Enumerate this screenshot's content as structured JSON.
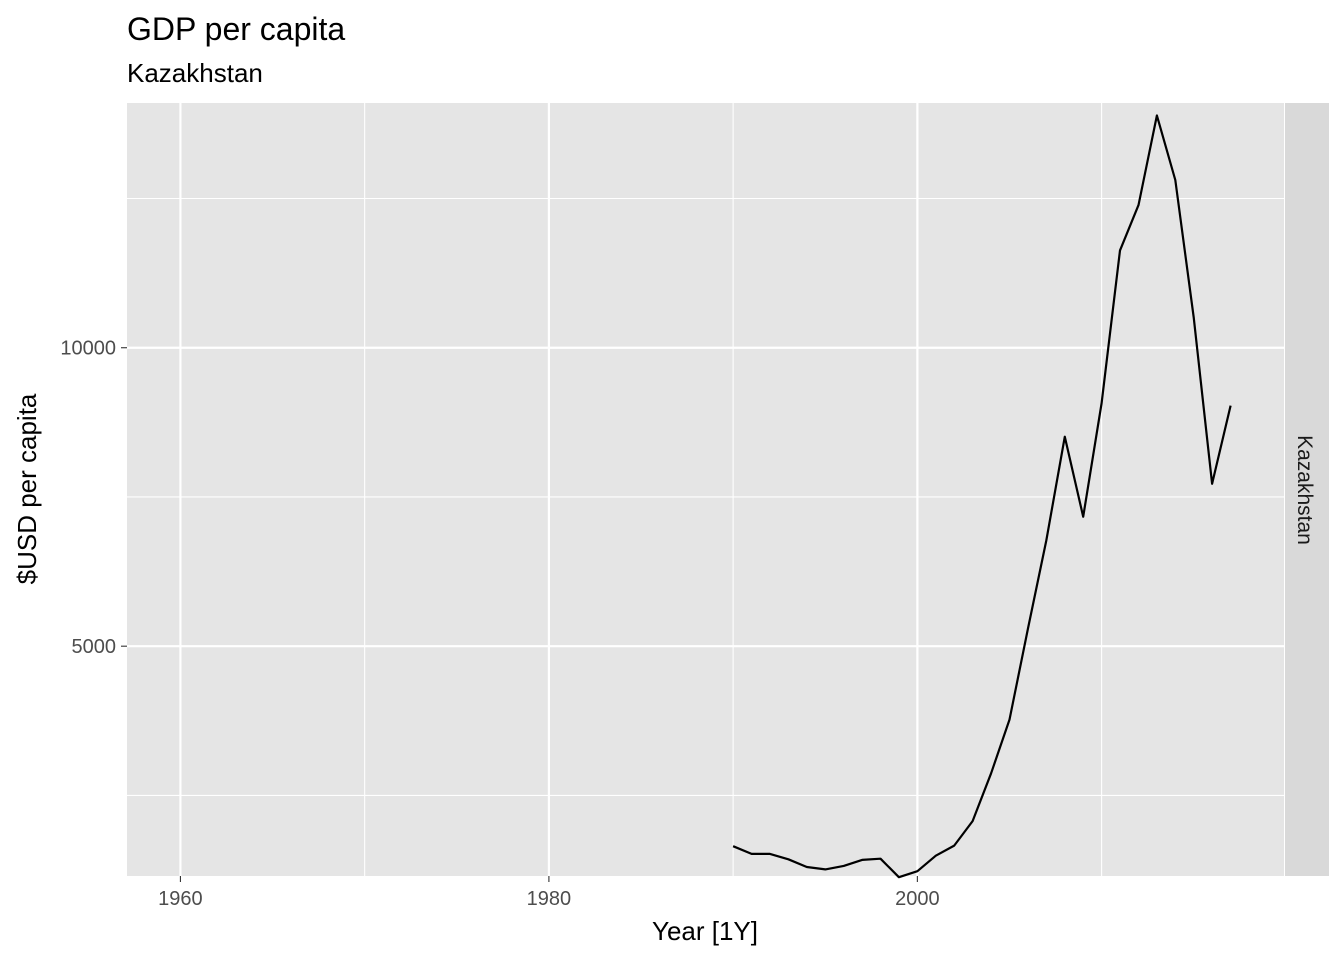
{
  "chart_data": {
    "type": "line",
    "title": "GDP per capita",
    "subtitle": "Kazakhstan",
    "xlabel": "Year [1Y]",
    "ylabel": "$USD per capita",
    "facet_label": "Kazakhstan",
    "xlim": [
      1957.1,
      2019.9
    ],
    "ylim": [
      1150,
      14100
    ],
    "x_ticks": [
      1960,
      1980,
      2000
    ],
    "x_minor_ticks": [
      1970,
      1990,
      2010
    ],
    "y_ticks": [
      5000,
      10000
    ],
    "y_minor_ticks": [
      2500,
      7500,
      12500
    ],
    "grid": true,
    "legend": "none",
    "colors": {
      "panel": "#e5e5e5",
      "strip": "#d9d9d9",
      "grid": "#ffffff",
      "line": "#000000"
    },
    "series": [
      {
        "x": [
          1990,
          1991,
          1992,
          1993,
          1994,
          1995,
          1996,
          1997,
          1998,
          1999,
          2000,
          2001,
          2002,
          2003,
          2004,
          2005,
          2006,
          2007,
          2008,
          2009,
          2010,
          2011,
          2012,
          2013,
          2014,
          2015,
          2016,
          2017
        ],
        "values": [
          1650,
          1520,
          1520,
          1430,
          1300,
          1260,
          1320,
          1420,
          1440,
          1130,
          1230,
          1490,
          1660,
          2070,
          2870,
          3770,
          5290,
          6770,
          8510,
          7170,
          9070,
          11630,
          12390,
          13890,
          12810,
          10510,
          7720,
          9030
        ]
      }
    ]
  }
}
